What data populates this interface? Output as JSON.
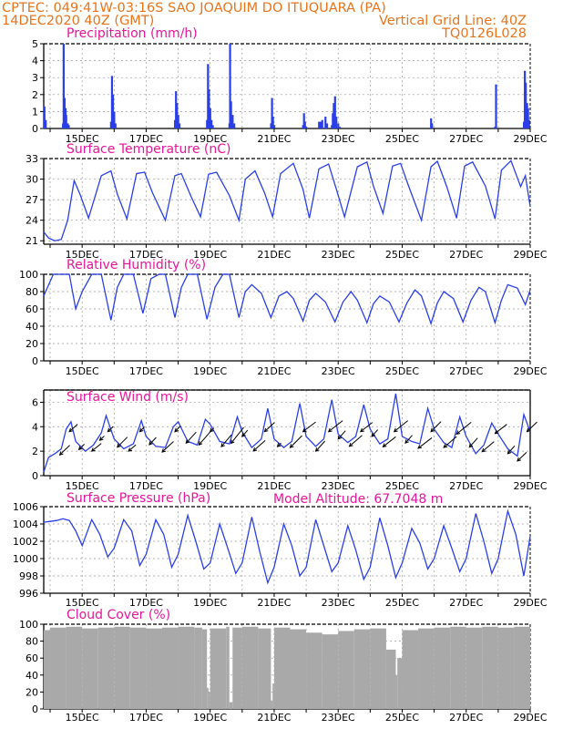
{
  "header": {
    "line1": "CPTEC:   049:41W-03:16S  SAO JOAQUIM DO ITUQUARA (PA)",
    "line2_left": "14DEC2020 40Z (GMT)",
    "line2_right": "Vertical Grid Line: 40Z",
    "line3_right": "TQ0126L028",
    "color": "#e8741c"
  },
  "colors": {
    "title": "#e8159b",
    "series": "#2b3fe8",
    "cloud": "#a9a9a9",
    "wind_arrow": "#000000"
  },
  "x_tick_labels": [
    "15DEC",
    "17DEC",
    "19DEC",
    "21DEC",
    "23DEC",
    "25DEC",
    "27DEC",
    "29DEC"
  ],
  "x_axis": {
    "start_day": 13.8,
    "end_day": 29.0,
    "tick_days": [
      15,
      17,
      19,
      21,
      23,
      25,
      27,
      29
    ]
  },
  "chart_data": [
    {
      "type": "bar",
      "title": "Precipitation (mm/h)",
      "ylim": [
        0,
        5
      ],
      "yticks": [
        "0",
        "1",
        "2",
        "3",
        "4",
        "5"
      ],
      "x_day": [
        13.82,
        13.86,
        14.4,
        14.42,
        14.45,
        14.48,
        14.5,
        14.55,
        14.58,
        15.9,
        15.93,
        15.96,
        16.0,
        16.04,
        17.9,
        17.93,
        17.96,
        18.0,
        18.04,
        18.9,
        18.93,
        18.96,
        19.0,
        19.04,
        19.08,
        19.6,
        19.62,
        19.65,
        19.7,
        19.75,
        20.9,
        20.93,
        20.96,
        21.0,
        21.9,
        21.93,
        21.96,
        22.0,
        22.4,
        22.45,
        22.5,
        22.6,
        22.65,
        22.8,
        22.83,
        22.86,
        22.9,
        22.94,
        23.0,
        23.05,
        25.9,
        25.93,
        27.9,
        27.93,
        28.8,
        28.83,
        28.86,
        28.9,
        28.93,
        28.96
      ],
      "values": [
        1.3,
        0.5,
        0.3,
        5.0,
        1.8,
        1.2,
        0.8,
        0.3,
        0.2,
        0.4,
        3.1,
        2.0,
        1.0,
        0.3,
        0.5,
        2.2,
        1.5,
        0.8,
        0.3,
        0.5,
        3.8,
        2.3,
        1.2,
        0.5,
        0.2,
        0.3,
        5.0,
        1.6,
        0.8,
        0.3,
        0.3,
        1.8,
        0.7,
        0.2,
        0.2,
        0.9,
        0.4,
        0.1,
        0.4,
        0.4,
        0.5,
        0.7,
        0.3,
        0.2,
        0.9,
        1.5,
        1.9,
        0.7,
        0.3,
        0.1,
        0.6,
        0.3,
        0.1,
        2.6,
        0.4,
        3.4,
        2.7,
        1.5,
        1.2,
        0.5
      ]
    },
    {
      "type": "line",
      "title": "Surface Temperature (nC)",
      "ylim": [
        20.5,
        33
      ],
      "yticks": [
        "21",
        "24",
        "27",
        "30",
        "33"
      ],
      "series": [
        {
          "x_day": [
            13.8,
            13.95,
            14.15,
            14.35,
            14.55,
            14.75,
            14.95,
            15.2,
            15.6,
            15.9,
            16.1,
            16.4,
            16.7,
            16.95,
            17.2,
            17.6,
            17.9,
            18.1,
            18.4,
            18.7,
            18.95,
            19.2,
            19.6,
            19.9,
            20.1,
            20.4,
            20.7,
            20.95,
            21.2,
            21.6,
            21.9,
            22.1,
            22.4,
            22.7,
            22.95,
            23.2,
            23.6,
            23.9,
            24.1,
            24.4,
            24.7,
            24.95,
            25.2,
            25.6,
            25.9,
            26.1,
            26.4,
            26.7,
            26.95,
            27.2,
            27.6,
            27.9,
            28.1,
            28.4,
            28.7,
            28.85,
            29.0
          ],
          "values": [
            22.3,
            21.4,
            21.0,
            21.2,
            24.0,
            29.8,
            27.6,
            24.3,
            30.5,
            31.2,
            27.8,
            24.2,
            30.8,
            31.0,
            28.0,
            24.0,
            30.5,
            30.8,
            27.5,
            24.5,
            30.7,
            31.0,
            27.6,
            24.0,
            30.0,
            31.2,
            28.0,
            24.5,
            30.8,
            32.3,
            28.5,
            24.3,
            31.5,
            32.2,
            28.4,
            24.5,
            31.8,
            32.5,
            29.0,
            25.0,
            31.9,
            32.3,
            29.0,
            24.0,
            31.8,
            32.6,
            28.8,
            24.3,
            31.9,
            32.5,
            29.0,
            24.2,
            31.3,
            32.7,
            28.9,
            30.5,
            26.0
          ]
        }
      ]
    },
    {
      "type": "line",
      "title": "Relative Humidity (%)",
      "ylim": [
        0,
        100
      ],
      "yticks": [
        "0",
        "20",
        "40",
        "60",
        "80",
        "100"
      ],
      "series": [
        {
          "x_day": [
            13.8,
            14.1,
            14.35,
            14.6,
            14.8,
            15.0,
            15.3,
            15.6,
            15.9,
            16.1,
            16.3,
            16.6,
            16.9,
            17.15,
            17.4,
            17.6,
            17.9,
            18.1,
            18.3,
            18.6,
            18.9,
            19.15,
            19.4,
            19.6,
            19.9,
            20.1,
            20.3,
            20.6,
            20.9,
            21.15,
            21.4,
            21.6,
            21.9,
            22.1,
            22.3,
            22.6,
            22.9,
            23.15,
            23.4,
            23.6,
            23.9,
            24.1,
            24.3,
            24.6,
            24.9,
            25.15,
            25.4,
            25.6,
            25.9,
            26.1,
            26.3,
            26.6,
            26.9,
            27.15,
            27.4,
            27.6,
            27.9,
            28.1,
            28.3,
            28.6,
            28.85,
            29.0
          ],
          "values": [
            75,
            100,
            100,
            100,
            60,
            80,
            100,
            100,
            47,
            85,
            100,
            100,
            55,
            95,
            100,
            100,
            50,
            85,
            100,
            100,
            48,
            85,
            100,
            100,
            50,
            80,
            88,
            78,
            50,
            75,
            80,
            72,
            46,
            70,
            78,
            68,
            45,
            68,
            80,
            70,
            44,
            66,
            75,
            68,
            45,
            67,
            82,
            75,
            43,
            67,
            80,
            72,
            45,
            70,
            85,
            80,
            44,
            70,
            88,
            84,
            65,
            82
          ]
        }
      ]
    },
    {
      "type": "line",
      "title": "Surface Wind (m/s)",
      "ylim": [
        0,
        7
      ],
      "yticks": [
        "0",
        "2",
        "4",
        "6"
      ],
      "series": [
        {
          "x_day": [
            13.8,
            13.95,
            14.15,
            14.35,
            14.5,
            14.65,
            14.8,
            15.1,
            15.35,
            15.6,
            15.75,
            16.0,
            16.3,
            16.6,
            16.85,
            17.0,
            17.3,
            17.6,
            17.85,
            18.0,
            18.3,
            18.6,
            18.85,
            19.0,
            19.3,
            19.6,
            19.85,
            20.0,
            20.3,
            20.6,
            20.8,
            21.0,
            21.3,
            21.55,
            21.8,
            22.0,
            22.3,
            22.55,
            22.8,
            23.0,
            23.3,
            23.55,
            23.8,
            24.0,
            24.3,
            24.55,
            24.8,
            25.0,
            25.3,
            25.55,
            25.8,
            26.0,
            26.3,
            26.55,
            26.8,
            27.0,
            27.3,
            27.55,
            27.8,
            28.0,
            28.3,
            28.6,
            28.8,
            29.0
          ],
          "values": [
            0.3,
            1.5,
            1.8,
            2.2,
            3.8,
            4.4,
            2.8,
            2.0,
            2.5,
            3.5,
            4.9,
            3.0,
            2.2,
            2.6,
            4.5,
            3.2,
            2.4,
            2.3,
            4.0,
            4.4,
            2.8,
            2.5,
            4.6,
            4.2,
            2.8,
            2.6,
            4.8,
            3.6,
            2.3,
            3.0,
            5.5,
            3.0,
            2.3,
            2.8,
            5.9,
            3.2,
            2.4,
            3.0,
            6.2,
            3.4,
            2.7,
            3.2,
            5.8,
            3.8,
            2.6,
            3.0,
            6.7,
            3.2,
            2.8,
            2.6,
            5.5,
            3.8,
            2.7,
            2.3,
            4.8,
            3.2,
            1.8,
            2.5,
            4.3,
            3.4,
            2.2,
            1.6,
            5.0,
            3.6
          ]
        }
      ],
      "arrows": {
        "x_day": [
          14.3,
          14.6,
          14.9,
          15.3,
          15.55,
          15.8,
          16.1,
          16.45,
          16.8,
          17.1,
          17.5,
          17.9,
          18.25,
          18.65,
          19.0,
          19.35,
          19.65,
          20.0,
          20.35,
          20.7,
          21.1,
          21.5,
          21.9,
          22.3,
          22.7,
          23.0,
          23.35,
          23.7,
          24.05,
          24.4,
          24.75,
          25.1,
          25.5,
          25.9,
          26.3,
          26.7,
          27.1,
          27.5,
          27.9,
          28.3,
          28.6,
          28.9
        ],
        "u": [
          2.2,
          1.8,
          1.2,
          2.1,
          1.0,
          1.2,
          2.2,
          1.6,
          1.0,
          1.5,
          2.5,
          1.2,
          2.2,
          2.6,
          0.8,
          2.2,
          2.8,
          1.2,
          2.6,
          2.2,
          0.8,
          2.6,
          2.8,
          2.0,
          3.1,
          1.6,
          2.8,
          2.6,
          1.3,
          2.8,
          3.0,
          1.5,
          3.0,
          2.2,
          2.8,
          3.2,
          1.8,
          2.6,
          2.6,
          1.5,
          2.0,
          2.2
        ],
        "v": [
          2.1,
          1.6,
          1.2,
          1.7,
          0.9,
          1.1,
          2.2,
          1.4,
          1.0,
          1.6,
          2.3,
          1.2,
          2.4,
          3.0,
          0.8,
          2.6,
          3.5,
          1.4,
          2.3,
          2.0,
          0.8,
          2.6,
          2.1,
          2.2,
          2.4,
          1.8,
          2.4,
          2.0,
          1.5,
          2.2,
          2.4,
          1.7,
          2.3,
          2.2,
          2.4,
          2.6,
          2.0,
          2.2,
          2.0,
          1.7,
          1.9,
          2.1
        ]
      }
    },
    {
      "type": "line",
      "title": "Surface Pressure (hPa)",
      "annotation": "Model Altitude: 67.7048 m",
      "ylim": [
        996,
        1006
      ],
      "yticks": [
        "996",
        "998",
        "1000",
        "1002",
        "1004",
        "1006"
      ],
      "series": [
        {
          "x_day": [
            13.8,
            14.0,
            14.2,
            14.4,
            14.6,
            14.8,
            15.0,
            15.3,
            15.55,
            15.8,
            16.0,
            16.3,
            16.55,
            16.8,
            17.0,
            17.3,
            17.55,
            17.8,
            18.0,
            18.3,
            18.55,
            18.8,
            19.0,
            19.3,
            19.55,
            19.8,
            20.0,
            20.3,
            20.55,
            20.8,
            21.0,
            21.3,
            21.55,
            21.8,
            22.0,
            22.3,
            22.55,
            22.8,
            23.0,
            23.3,
            23.55,
            23.8,
            24.0,
            24.3,
            24.55,
            24.8,
            25.0,
            25.3,
            25.55,
            25.8,
            26.0,
            26.3,
            26.55,
            26.8,
            27.0,
            27.3,
            27.55,
            27.8,
            28.0,
            28.3,
            28.55,
            28.8,
            29.0
          ],
          "values": [
            1004.2,
            1004.3,
            1004.4,
            1004.6,
            1004.4,
            1003.2,
            1001.5,
            1004.5,
            1002.8,
            1000.2,
            1001.2,
            1004.5,
            1003.2,
            999.2,
            1000.5,
            1004.5,
            1002.8,
            999.0,
            1000.5,
            1005.0,
            1002.0,
            998.8,
            999.5,
            1004.0,
            1001.2,
            998.3,
            999.5,
            1004.8,
            1000.8,
            997.2,
            999.0,
            1004.0,
            1001.5,
            998.0,
            999.0,
            1004.5,
            1001.5,
            998.5,
            999.5,
            1003.8,
            1001.0,
            997.6,
            999.0,
            1004.7,
            1001.5,
            997.8,
            999.5,
            1003.5,
            1001.8,
            998.8,
            1000.0,
            1003.8,
            1001.2,
            998.5,
            1000.0,
            1005.2,
            1002.0,
            998.3,
            1000.0,
            1005.5,
            1002.8,
            998.0,
            1002.6
          ]
        }
      ]
    },
    {
      "type": "bar",
      "title": "Cloud Cover (%)",
      "ylim": [
        0,
        100
      ],
      "yticks": [
        "0",
        "20",
        "40",
        "60",
        "80",
        "100"
      ],
      "x_day": [
        13.8,
        14.0,
        14.5,
        15.0,
        15.5,
        16.0,
        16.5,
        17.0,
        17.5,
        18.0,
        18.5,
        18.75,
        18.9,
        18.95,
        19.0,
        19.5,
        19.6,
        19.7,
        20.0,
        20.5,
        20.9,
        20.95,
        21.0,
        21.5,
        22.0,
        22.5,
        23.0,
        23.5,
        24.0,
        24.5,
        24.8,
        24.85,
        25.0,
        25.5,
        26.0,
        26.5,
        27.0,
        27.5,
        28.0,
        28.5
      ],
      "values": [
        93,
        96,
        97,
        95,
        96,
        97,
        96,
        95,
        96,
        97,
        96,
        94,
        25,
        20,
        95,
        97,
        8,
        96,
        97,
        95,
        10,
        30,
        96,
        94,
        90,
        88,
        92,
        94,
        95,
        70,
        40,
        60,
        93,
        95,
        96,
        97,
        96,
        97,
        96,
        97
      ]
    }
  ]
}
